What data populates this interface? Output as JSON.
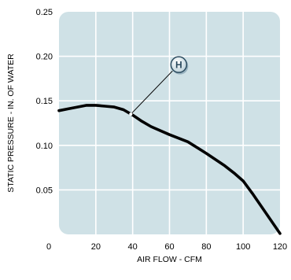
{
  "chart_data": {
    "type": "line",
    "title": "",
    "xlabel": "AIR FLOW - CFM",
    "ylabel": "STATIC PRESSURE - IN. OF WATER",
    "xlim": [
      0,
      120
    ],
    "ylim": [
      0,
      0.25
    ],
    "x_ticks": [
      0,
      20,
      40,
      60,
      80,
      100,
      120
    ],
    "x_tick_labels": [
      "0",
      "20",
      "40",
      "60",
      "80",
      "100",
      "120"
    ],
    "y_ticks": [
      0.05,
      0.1,
      0.15,
      0.2,
      0.25
    ],
    "y_tick_labels": [
      "0.05",
      "0.10",
      "0.15",
      "0.20",
      "0.25"
    ],
    "grid": true,
    "series": [
      {
        "x": [
          0,
          5,
          10,
          15,
          20,
          25,
          30,
          35,
          40,
          45,
          50,
          60,
          70,
          80,
          90,
          95,
          100,
          105,
          110,
          115,
          120
        ],
        "y": [
          0.139,
          0.141,
          0.143,
          0.145,
          0.145,
          0.144,
          0.143,
          0.14,
          0.134,
          0.127,
          0.121,
          0.112,
          0.104,
          0.091,
          0.077,
          0.069,
          0.06,
          0.046,
          0.031,
          0.016,
          0.001
        ]
      }
    ],
    "annotations": [
      {
        "label": "H",
        "x": 39,
        "y": 0.135
      }
    ],
    "colors": {
      "plot_background": "#cfe1e6",
      "grid": "#ffffff",
      "line": "#000000",
      "marker_fill": "#e4eef2",
      "marker_border": "#2a4a5e",
      "text": "#000000"
    }
  }
}
